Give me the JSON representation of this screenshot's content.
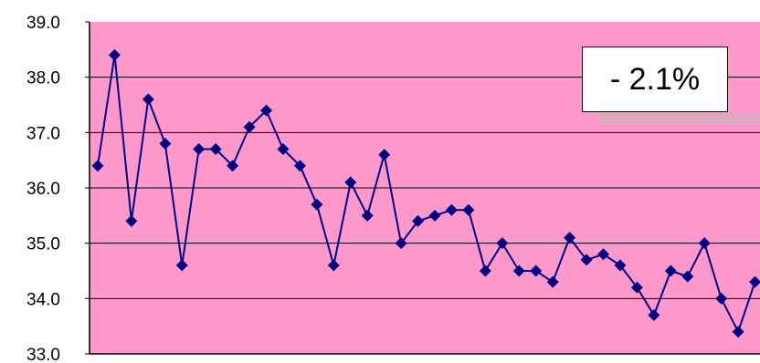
{
  "chart_data": {
    "type": "line",
    "title": "",
    "xlabel": "",
    "ylabel": "",
    "ylim": [
      33.0,
      39.0
    ],
    "yticks": [
      "39.0",
      "38.0",
      "37.0",
      "36.0",
      "35.0",
      "34.0",
      "33.0"
    ],
    "grid": true,
    "legend": "none",
    "annotation": "- 2.1%",
    "colors": {
      "plot_bg": "#ff99cc",
      "line": "#000080",
      "grid": "#000000"
    },
    "series": [
      {
        "values": [
          36.4,
          38.4,
          35.4,
          37.6,
          36.8,
          34.6,
          36.7,
          36.7,
          36.4,
          37.1,
          37.4,
          36.7,
          36.4,
          35.7,
          34.6,
          36.1,
          35.5,
          36.6,
          35.0,
          35.4,
          35.5,
          35.6,
          35.6,
          34.5,
          35.0,
          34.5,
          34.5,
          34.3,
          35.1,
          34.7,
          34.8,
          34.6,
          34.2,
          33.7,
          34.5,
          34.4,
          35.0,
          34.0,
          33.4,
          34.3
        ]
      }
    ]
  }
}
